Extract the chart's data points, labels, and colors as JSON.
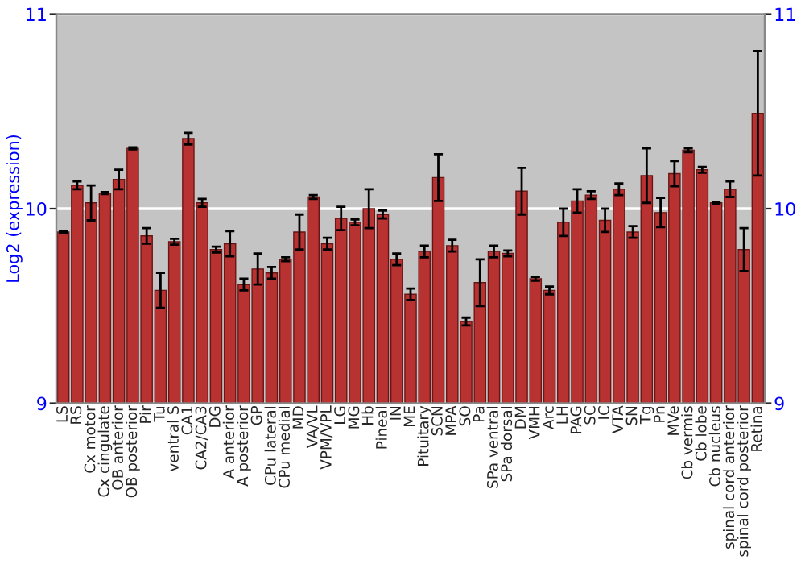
{
  "chart_data": {
    "type": "bar",
    "ylabel": "Log2 (expression)",
    "categories": [
      "LS",
      "RS",
      "Cx motor",
      "Cx cingulate",
      "OB anterior",
      "OB posterior",
      "Pir",
      "Tu",
      "ventral S",
      "CA1",
      "CA2/CA3",
      "DG",
      "A anterior",
      "A posterior",
      "GP",
      "CPu lateral",
      "CPu medial",
      "MD",
      "VA/VL",
      "VPM/VPL",
      "LG",
      "MG",
      "Hb",
      "Pineal",
      "IN",
      "ME",
      "Pituitary",
      "SCN",
      "MPA",
      "SO",
      "Pa",
      "SPa ventral",
      "SPa dorsal",
      "DM",
      "VMH",
      "Arc",
      "LH",
      "PAG",
      "SC",
      "IC",
      "VTA",
      "SN",
      "Tg",
      "Pn",
      "MVe",
      "Cb vermis",
      "Cb lobe",
      "Cb nucleus",
      "spinal cord anterior",
      "spinal cord posterior",
      "Retina"
    ],
    "values": [
      9.88,
      10.12,
      10.03,
      10.08,
      10.15,
      10.31,
      9.86,
      9.58,
      9.83,
      10.36,
      10.03,
      9.79,
      9.82,
      9.61,
      9.69,
      9.67,
      9.74,
      9.88,
      10.06,
      9.82,
      9.95,
      9.93,
      10.0,
      9.97,
      9.74,
      9.56,
      9.78,
      10.16,
      9.81,
      9.42,
      9.62,
      9.78,
      9.77,
      10.09,
      9.64,
      9.58,
      9.93,
      10.04,
      10.07,
      9.94,
      10.1,
      9.88,
      10.17,
      9.98,
      10.18,
      10.3,
      10.2,
      10.03,
      10.1,
      9.79,
      10.49
    ],
    "errors": [
      0.005,
      0.02,
      0.09,
      0.005,
      0.05,
      0.005,
      0.04,
      0.09,
      0.015,
      0.03,
      0.02,
      0.015,
      0.065,
      0.03,
      0.08,
      0.03,
      0.01,
      0.09,
      0.01,
      0.03,
      0.06,
      0.015,
      0.1,
      0.02,
      0.03,
      0.03,
      0.03,
      0.12,
      0.03,
      0.02,
      0.12,
      0.03,
      0.015,
      0.12,
      0.01,
      0.02,
      0.07,
      0.06,
      0.02,
      0.06,
      0.03,
      0.03,
      0.14,
      0.075,
      0.065,
      0.01,
      0.015,
      0.005,
      0.04,
      0.11,
      0.32
    ],
    "color": "#b83232",
    "ylim": [
      9,
      11
    ],
    "yticks": [
      9,
      10,
      11
    ],
    "y2lim": [
      9,
      11
    ],
    "y2ticks": [
      9,
      10,
      11
    ],
    "grid": "y"
  }
}
